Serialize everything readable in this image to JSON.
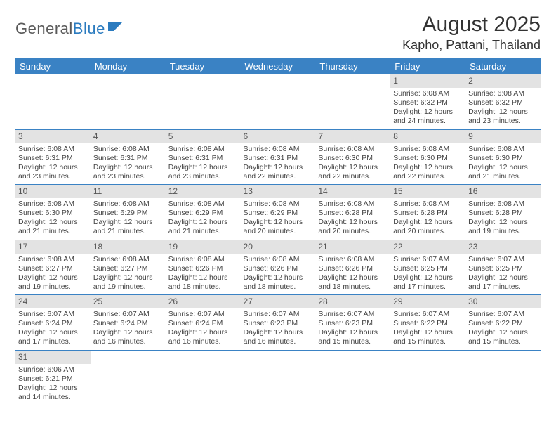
{
  "logo": {
    "part1": "General",
    "part2": "Blue"
  },
  "title": "August 2025",
  "location": "Kapho, Pattani, Thailand",
  "theme": {
    "header_bg": "#3a82c4",
    "header_fg": "#ffffff",
    "daynum_bg": "#e3e3e3",
    "daynum_fg": "#555555",
    "cell_border": "#3a82c4",
    "text_color": "#444444",
    "logo_gray": "#5a5a5a",
    "logo_blue": "#2b7bbf"
  },
  "weekdays": [
    "Sunday",
    "Monday",
    "Tuesday",
    "Wednesday",
    "Thursday",
    "Friday",
    "Saturday"
  ],
  "weeks": [
    [
      null,
      null,
      null,
      null,
      null,
      {
        "n": "1",
        "sr": "Sunrise: 6:08 AM",
        "ss": "Sunset: 6:32 PM",
        "d1": "Daylight: 12 hours",
        "d2": "and 24 minutes."
      },
      {
        "n": "2",
        "sr": "Sunrise: 6:08 AM",
        "ss": "Sunset: 6:32 PM",
        "d1": "Daylight: 12 hours",
        "d2": "and 23 minutes."
      }
    ],
    [
      {
        "n": "3",
        "sr": "Sunrise: 6:08 AM",
        "ss": "Sunset: 6:31 PM",
        "d1": "Daylight: 12 hours",
        "d2": "and 23 minutes."
      },
      {
        "n": "4",
        "sr": "Sunrise: 6:08 AM",
        "ss": "Sunset: 6:31 PM",
        "d1": "Daylight: 12 hours",
        "d2": "and 23 minutes."
      },
      {
        "n": "5",
        "sr": "Sunrise: 6:08 AM",
        "ss": "Sunset: 6:31 PM",
        "d1": "Daylight: 12 hours",
        "d2": "and 23 minutes."
      },
      {
        "n": "6",
        "sr": "Sunrise: 6:08 AM",
        "ss": "Sunset: 6:31 PM",
        "d1": "Daylight: 12 hours",
        "d2": "and 22 minutes."
      },
      {
        "n": "7",
        "sr": "Sunrise: 6:08 AM",
        "ss": "Sunset: 6:30 PM",
        "d1": "Daylight: 12 hours",
        "d2": "and 22 minutes."
      },
      {
        "n": "8",
        "sr": "Sunrise: 6:08 AM",
        "ss": "Sunset: 6:30 PM",
        "d1": "Daylight: 12 hours",
        "d2": "and 22 minutes."
      },
      {
        "n": "9",
        "sr": "Sunrise: 6:08 AM",
        "ss": "Sunset: 6:30 PM",
        "d1": "Daylight: 12 hours",
        "d2": "and 21 minutes."
      }
    ],
    [
      {
        "n": "10",
        "sr": "Sunrise: 6:08 AM",
        "ss": "Sunset: 6:30 PM",
        "d1": "Daylight: 12 hours",
        "d2": "and 21 minutes."
      },
      {
        "n": "11",
        "sr": "Sunrise: 6:08 AM",
        "ss": "Sunset: 6:29 PM",
        "d1": "Daylight: 12 hours",
        "d2": "and 21 minutes."
      },
      {
        "n": "12",
        "sr": "Sunrise: 6:08 AM",
        "ss": "Sunset: 6:29 PM",
        "d1": "Daylight: 12 hours",
        "d2": "and 21 minutes."
      },
      {
        "n": "13",
        "sr": "Sunrise: 6:08 AM",
        "ss": "Sunset: 6:29 PM",
        "d1": "Daylight: 12 hours",
        "d2": "and 20 minutes."
      },
      {
        "n": "14",
        "sr": "Sunrise: 6:08 AM",
        "ss": "Sunset: 6:28 PM",
        "d1": "Daylight: 12 hours",
        "d2": "and 20 minutes."
      },
      {
        "n": "15",
        "sr": "Sunrise: 6:08 AM",
        "ss": "Sunset: 6:28 PM",
        "d1": "Daylight: 12 hours",
        "d2": "and 20 minutes."
      },
      {
        "n": "16",
        "sr": "Sunrise: 6:08 AM",
        "ss": "Sunset: 6:28 PM",
        "d1": "Daylight: 12 hours",
        "d2": "and 19 minutes."
      }
    ],
    [
      {
        "n": "17",
        "sr": "Sunrise: 6:08 AM",
        "ss": "Sunset: 6:27 PM",
        "d1": "Daylight: 12 hours",
        "d2": "and 19 minutes."
      },
      {
        "n": "18",
        "sr": "Sunrise: 6:08 AM",
        "ss": "Sunset: 6:27 PM",
        "d1": "Daylight: 12 hours",
        "d2": "and 19 minutes."
      },
      {
        "n": "19",
        "sr": "Sunrise: 6:08 AM",
        "ss": "Sunset: 6:26 PM",
        "d1": "Daylight: 12 hours",
        "d2": "and 18 minutes."
      },
      {
        "n": "20",
        "sr": "Sunrise: 6:08 AM",
        "ss": "Sunset: 6:26 PM",
        "d1": "Daylight: 12 hours",
        "d2": "and 18 minutes."
      },
      {
        "n": "21",
        "sr": "Sunrise: 6:08 AM",
        "ss": "Sunset: 6:26 PM",
        "d1": "Daylight: 12 hours",
        "d2": "and 18 minutes."
      },
      {
        "n": "22",
        "sr": "Sunrise: 6:07 AM",
        "ss": "Sunset: 6:25 PM",
        "d1": "Daylight: 12 hours",
        "d2": "and 17 minutes."
      },
      {
        "n": "23",
        "sr": "Sunrise: 6:07 AM",
        "ss": "Sunset: 6:25 PM",
        "d1": "Daylight: 12 hours",
        "d2": "and 17 minutes."
      }
    ],
    [
      {
        "n": "24",
        "sr": "Sunrise: 6:07 AM",
        "ss": "Sunset: 6:24 PM",
        "d1": "Daylight: 12 hours",
        "d2": "and 17 minutes."
      },
      {
        "n": "25",
        "sr": "Sunrise: 6:07 AM",
        "ss": "Sunset: 6:24 PM",
        "d1": "Daylight: 12 hours",
        "d2": "and 16 minutes."
      },
      {
        "n": "26",
        "sr": "Sunrise: 6:07 AM",
        "ss": "Sunset: 6:24 PM",
        "d1": "Daylight: 12 hours",
        "d2": "and 16 minutes."
      },
      {
        "n": "27",
        "sr": "Sunrise: 6:07 AM",
        "ss": "Sunset: 6:23 PM",
        "d1": "Daylight: 12 hours",
        "d2": "and 16 minutes."
      },
      {
        "n": "28",
        "sr": "Sunrise: 6:07 AM",
        "ss": "Sunset: 6:23 PM",
        "d1": "Daylight: 12 hours",
        "d2": "and 15 minutes."
      },
      {
        "n": "29",
        "sr": "Sunrise: 6:07 AM",
        "ss": "Sunset: 6:22 PM",
        "d1": "Daylight: 12 hours",
        "d2": "and 15 minutes."
      },
      {
        "n": "30",
        "sr": "Sunrise: 6:07 AM",
        "ss": "Sunset: 6:22 PM",
        "d1": "Daylight: 12 hours",
        "d2": "and 15 minutes."
      }
    ],
    [
      {
        "n": "31",
        "sr": "Sunrise: 6:06 AM",
        "ss": "Sunset: 6:21 PM",
        "d1": "Daylight: 12 hours",
        "d2": "and 14 minutes."
      },
      null,
      null,
      null,
      null,
      null,
      null
    ]
  ]
}
